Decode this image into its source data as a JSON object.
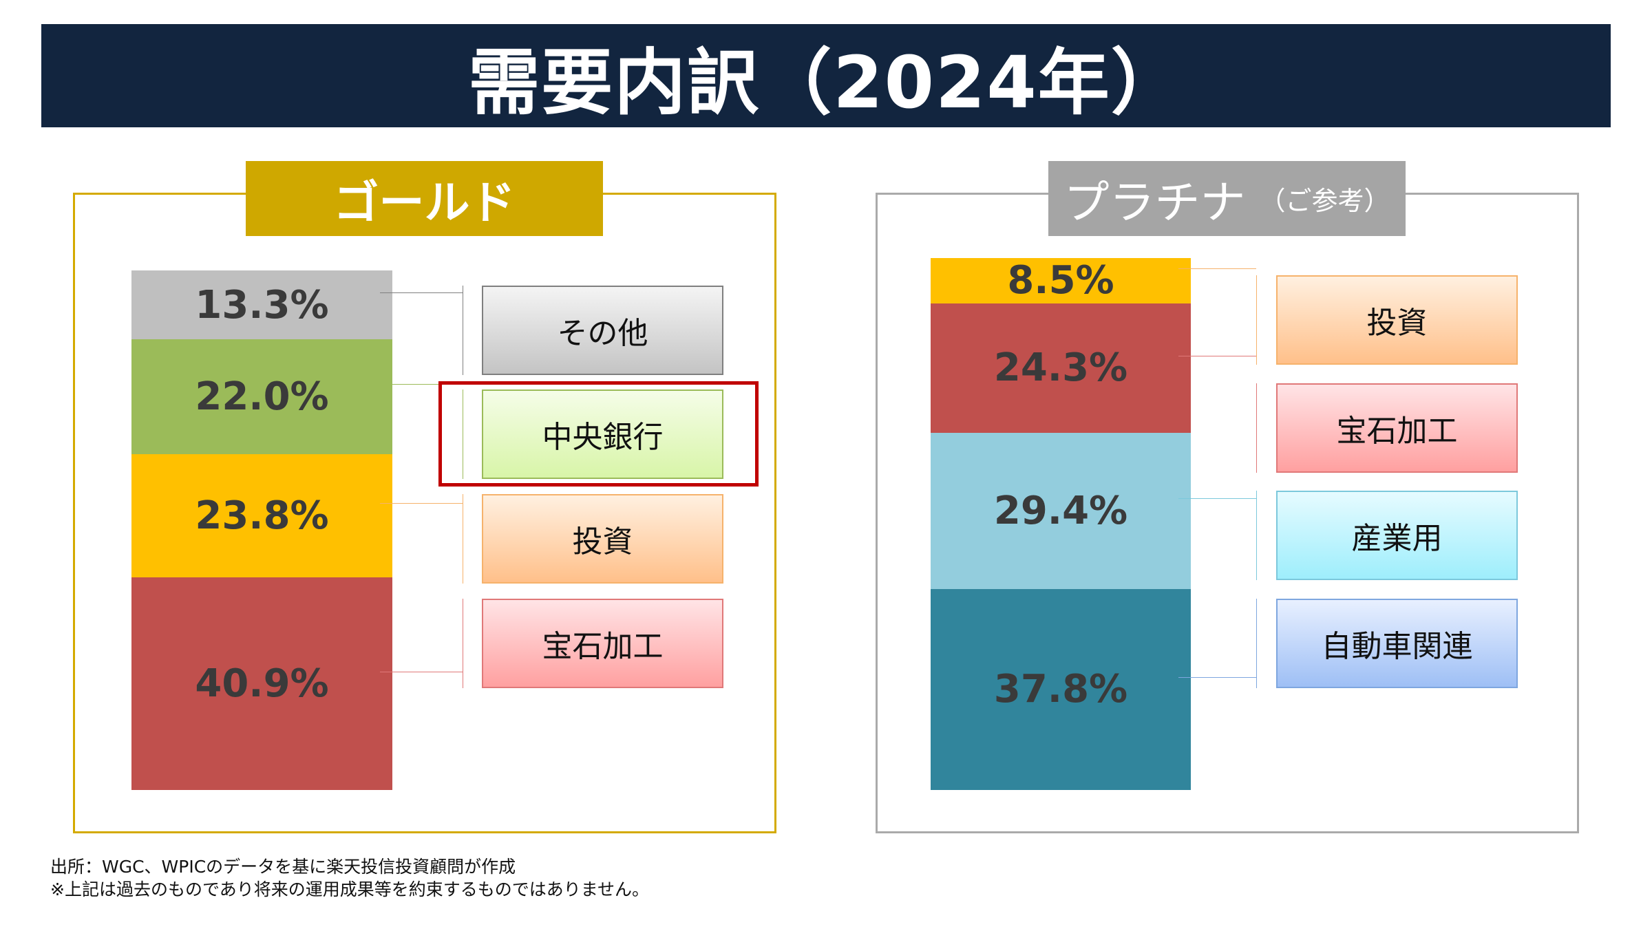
{
  "title": "需要内訳（2024年）",
  "chart_data": [
    {
      "type": "stacked-bar",
      "title": "ゴールド",
      "segments": [
        {
          "label": "その他",
          "value": 13.3,
          "text": "13.3%",
          "color": "#bfbfbf",
          "grad": [
            "#f4f4f4",
            "#c4c4c4"
          ],
          "border": "#7f7f7f"
        },
        {
          "label": "中央銀行",
          "value": 22.0,
          "text": "22.0%",
          "color": "#9bbb59",
          "grad": [
            "#f5fde8",
            "#d8f5a8"
          ],
          "border": "#9bbb59"
        },
        {
          "label": "投資",
          "value": 23.8,
          "text": "23.8%",
          "color": "#ffc000",
          "grad": [
            "#fff0e0",
            "#ffc08a"
          ],
          "border": "#f6b26b"
        },
        {
          "label": "宝石加工",
          "value": 40.9,
          "text": "40.9%",
          "color": "#c0504d",
          "grad": [
            "#ffe4e6",
            "#ffa0a0"
          ],
          "border": "#e07878"
        }
      ]
    },
    {
      "type": "stacked-bar",
      "title": "プラチナ",
      "title_note": "（ご参考）",
      "segments": [
        {
          "label": "投資",
          "value": 8.5,
          "text": "8.5%",
          "color": "#ffc000",
          "grad": [
            "#fff0e0",
            "#ffc08a"
          ],
          "border": "#f6b26b"
        },
        {
          "label": "宝石加工",
          "value": 24.3,
          "text": "24.3%",
          "color": "#c0504d",
          "grad": [
            "#ffe4e6",
            "#ffa0a0"
          ],
          "border": "#e07878"
        },
        {
          "label": "産業用",
          "value": 29.4,
          "text": "29.4%",
          "color": "#93cddd",
          "grad": [
            "#e6fbff",
            "#9eeefc"
          ],
          "border": "#7cc8dc"
        },
        {
          "label": "自動車関連",
          "value": 37.8,
          "text": "37.8%",
          "color": "#31859c",
          "grad": [
            "#e8f0ff",
            "#9ebff5"
          ],
          "border": "#7ea6df"
        }
      ]
    }
  ],
  "highlight": "中央銀行",
  "footer": {
    "source": "出所：WGC、WPICのデータを基に楽天投信投資顧問が作成",
    "disclaimer": "※上記は過去のものであり将来の運用成果等を約束するものではありません。"
  }
}
